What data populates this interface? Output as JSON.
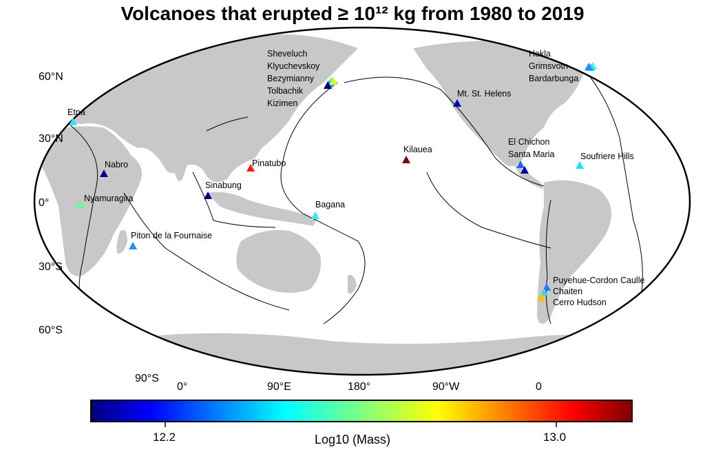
{
  "title": "Volcanoes that erupted ≥ 10¹² kg from 1980 to 2019",
  "lat_labels": [
    "60°N",
    "30°N",
    "0°",
    "30°S",
    "60°S",
    "90°S"
  ],
  "lon_labels": [
    "0°",
    "90°E",
    "180°",
    "90°W",
    "0"
  ],
  "colorbar": {
    "label": "Log10 (Mass)",
    "ticks": [
      "12.2",
      "13.0"
    ],
    "colormap": "jet",
    "range_note": ""
  },
  "volcanoes": [
    {
      "name": "Sheveluch",
      "color": "#9cff5a"
    },
    {
      "name": "Klyuchevskoy",
      "color": "#5affa0"
    },
    {
      "name": "Bezymianny",
      "color": "#2a9dff"
    },
    {
      "name": "Tolbachik",
      "color": "#c8ff30"
    },
    {
      "name": "Kizimen",
      "color": "#00007f"
    },
    {
      "name": "Hekla",
      "color": "#40ffb8"
    },
    {
      "name": "Grimsvotn",
      "color": "#20d4ff"
    },
    {
      "name": "Bardarbunga",
      "color": "#1e90ff"
    },
    {
      "name": "Etna",
      "color": "#30e6ff"
    },
    {
      "name": "Mt. St. Helens",
      "color": "#0000c8"
    },
    {
      "name": "Kilauea",
      "color": "#800000"
    },
    {
      "name": "El Chichon",
      "color": "#1e64ff"
    },
    {
      "name": "Santa Maria",
      "color": "#0000a0"
    },
    {
      "name": "Soufriere Hills",
      "color": "#20e0ff"
    },
    {
      "name": "Nabro",
      "color": "#00008c"
    },
    {
      "name": "Pinatubo",
      "color": "#ff1a00"
    },
    {
      "name": "Sinabung",
      "color": "#000096"
    },
    {
      "name": "Nyamuragira",
      "color": "#60ffa0"
    },
    {
      "name": "Bagana",
      "color": "#30eaff"
    },
    {
      "name": "Piton de la Fournaise",
      "color": "#1e90ff"
    },
    {
      "name": "Puyehue-Cordon Caulle",
      "color": "#1e7cff"
    },
    {
      "name": "Chaiten",
      "color": "#40d0ff"
    },
    {
      "name": "Cerro Hudson",
      "color": "#ffc000"
    }
  ],
  "colors": {
    "land": "#c8c8c8",
    "ocean": "#ffffff",
    "plates": "#000000"
  }
}
